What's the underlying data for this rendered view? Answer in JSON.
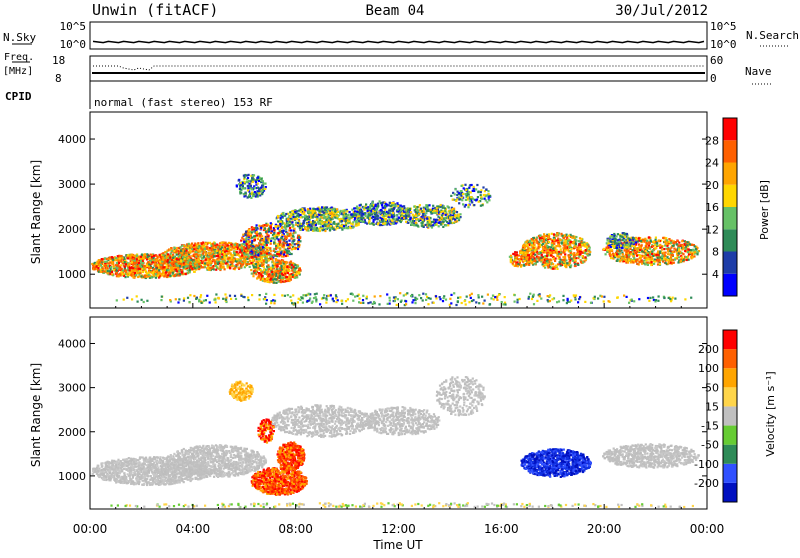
{
  "header": {
    "radar": "Unwin (fitACF)",
    "beam": "Beam 04",
    "date": "30/Jul/2012"
  },
  "nsky_panel": {
    "left_label": "N.Sky",
    "right_label": "N.Search",
    "tick_high": "10^5",
    "tick_low": "10^0"
  },
  "freq_panel": {
    "left_label_1": "Freq.",
    "left_label_2": "[MHz]",
    "left_ticks": [
      "18",
      "8"
    ],
    "right_ticks": [
      "60",
      "0"
    ],
    "right_label": "Nave",
    "cpid_label": "CPID",
    "cpid_text": "normal (fast stereo) 153 RF"
  },
  "chart_data": [
    {
      "type": "heatmap",
      "title": "",
      "ylabel": "Slant Range [km]",
      "yticks": [
        "1000",
        "2000",
        "3000",
        "4000"
      ],
      "ylim": [
        250,
        4600
      ],
      "colorbar": {
        "label": "Power [dB]",
        "ticks": [
          "4",
          "8",
          "12",
          "16",
          "20",
          "24",
          "28"
        ],
        "colors": [
          "#0000ff",
          "#1e3da8",
          "#2e8b57",
          "#66c166",
          "#ffd700",
          "#ffa500",
          "#ff6000",
          "#ff0000"
        ]
      }
    },
    {
      "type": "heatmap",
      "title": "",
      "ylabel": "Slant Range [km]",
      "yticks": [
        "1000",
        "2000",
        "3000",
        "4000"
      ],
      "ylim": [
        250,
        4600
      ],
      "colorbar": {
        "label": "Velocity [m s⁻¹]",
        "ticks": [
          "200",
          "100",
          "50",
          "15",
          "-15",
          "-50",
          "-100",
          "-200"
        ],
        "colors": [
          "#0010c0",
          "#3050ff",
          "#2e8b57",
          "#66cc33",
          "#c0c0c0",
          "#ffd54a",
          "#ffa500",
          "#ff6000",
          "#ff0000"
        ]
      }
    }
  ],
  "x_axis": {
    "label": "Time UT",
    "ticks": [
      "00:00",
      "04:00",
      "08:00",
      "12:00",
      "16:00",
      "20:00",
      "00:00"
    ]
  }
}
